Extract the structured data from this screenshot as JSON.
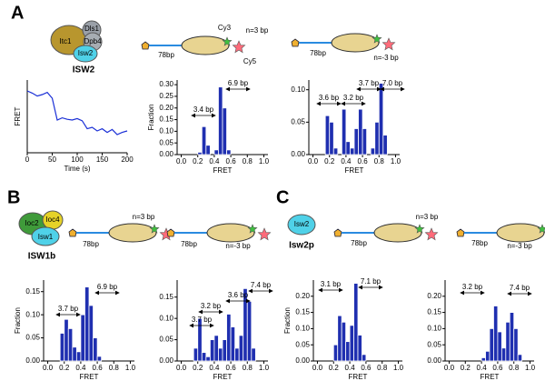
{
  "figure": {
    "panel_labels": [
      "A",
      "B",
      "C"
    ],
    "complexes": [
      {
        "name": "ISW2",
        "subunits": [
          "Itc1",
          "Dls1",
          "Dpb4",
          "Isw2"
        ]
      },
      {
        "name": "ISW1b",
        "subunits": [
          "Ioc2",
          "Ioc4",
          "Isw1"
        ]
      },
      {
        "name": "Isw2p",
        "subunits": [
          "Isw2"
        ]
      }
    ],
    "constructs": [
      {
        "linker": "78bp",
        "position": "n=3 bp",
        "donor": "Cy3",
        "acceptor": "Cy5"
      },
      {
        "linker": "78bp",
        "position": "n=-3 bp"
      },
      {
        "linker": "78bp",
        "position": "n=3 bp"
      },
      {
        "linker": "78bp",
        "position": "n=-3 bp"
      },
      {
        "linker": "78bp",
        "position": "n=3 bp"
      },
      {
        "linker": "78bp",
        "position": "n=-3 bp"
      }
    ]
  },
  "chart_data": [
    {
      "type": "line",
      "xlabel": "Time (s)",
      "ylabel": "FRET",
      "color": "#1a2fd6",
      "x": [
        0,
        10,
        20,
        30,
        40,
        50,
        60,
        70,
        80,
        90,
        100,
        110,
        120,
        130,
        140,
        150,
        160,
        170,
        180,
        190,
        200
      ],
      "values": [
        0.85,
        0.82,
        0.78,
        0.8,
        0.83,
        0.75,
        0.45,
        0.48,
        0.46,
        0.45,
        0.47,
        0.44,
        0.33,
        0.35,
        0.3,
        0.33,
        0.28,
        0.32,
        0.25,
        0.28,
        0.3
      ],
      "xlim": [
        0,
        200
      ],
      "ylim": [
        0,
        1
      ],
      "xticks": [
        0,
        50,
        100,
        150,
        200
      ]
    },
    {
      "type": "histogram",
      "xlabel": "FRET",
      "ylabel": "Fraction",
      "color": "#1f2fb0",
      "bins": [
        0,
        0.05,
        0.1,
        0.15,
        0.2,
        0.25,
        0.3,
        0.35,
        0.4,
        0.45,
        0.5,
        0.55,
        0.6,
        0.65,
        0.7,
        0.75,
        0.8,
        0.85,
        0.9,
        0.95,
        1
      ],
      "values": [
        0,
        0,
        0,
        0,
        0.01,
        0.12,
        0.04,
        0,
        0.02,
        0.29,
        0.2,
        0.02,
        0,
        0,
        0,
        0,
        0,
        0,
        0,
        0
      ],
      "annotations": [
        "3.4 bp",
        "6.9 bp"
      ],
      "xlim": [
        -0.05,
        1.05
      ],
      "ylim": [
        0,
        0.32
      ],
      "xticks": [
        {
          "value": 0,
          "label": "0.0"
        },
        {
          "value": 0.2,
          "label": "0.2"
        },
        {
          "value": 0.4,
          "label": "0.4"
        },
        {
          "value": 0.6,
          "label": "0.6"
        },
        {
          "value": 0.8,
          "label": "0.8"
        },
        {
          "value": 1,
          "label": "1.0"
        }
      ],
      "yticks": [
        {
          "value": 0,
          "label": "0.00"
        },
        {
          "value": 0.05,
          "label": "0.05"
        },
        {
          "value": 0.1,
          "label": "0.10"
        },
        {
          "value": 0.15,
          "label": "0.15"
        },
        {
          "value": 0.2,
          "label": "0.20"
        },
        {
          "value": 0.25,
          "label": "0.25"
        },
        {
          "value": 0.3,
          "label": "0.30"
        }
      ]
    },
    {
      "type": "histogram",
      "xlabel": "FRET",
      "color": "#1f2fb0",
      "bins": [
        0,
        0.05,
        0.1,
        0.15,
        0.2,
        0.25,
        0.3,
        0.35,
        0.4,
        0.45,
        0.5,
        0.55,
        0.6,
        0.65,
        0.7,
        0.75,
        0.8,
        0.85,
        0.9,
        0.95,
        1
      ],
      "values": [
        0,
        0,
        0,
        0.06,
        0.05,
        0.01,
        0,
        0.07,
        0.02,
        0.01,
        0.04,
        0.07,
        0.04,
        0,
        0.01,
        0.05,
        0.11,
        0.03,
        0,
        0
      ],
      "annotations": [
        "3.6 bp",
        "3.2 bp",
        "3.7 bp",
        "7.0 bp"
      ],
      "xlim": [
        -0.05,
        1.05
      ],
      "ylim": [
        0,
        0.115
      ],
      "xticks": [
        {
          "value": 0,
          "label": "0.0"
        },
        {
          "value": 0.2,
          "label": "0.2"
        },
        {
          "value": 0.4,
          "label": "0.4"
        },
        {
          "value": 0.6,
          "label": "0.6"
        },
        {
          "value": 0.8,
          "label": "0.8"
        },
        {
          "value": 1,
          "label": "1.0"
        }
      ],
      "yticks": [
        {
          "value": 0,
          "label": "0.00"
        },
        {
          "value": 0.05,
          "label": "0.05"
        },
        {
          "value": 0.1,
          "label": "0.10"
        }
      ]
    },
    {
      "type": "histogram",
      "xlabel": "FRET",
      "ylabel": "Fraction",
      "color": "#1f2fb0",
      "bins": [
        0,
        0.05,
        0.1,
        0.15,
        0.2,
        0.25,
        0.3,
        0.35,
        0.4,
        0.45,
        0.5,
        0.55,
        0.6,
        0.65,
        0.7,
        0.75,
        0.8,
        0.85,
        0.9,
        0.95,
        1
      ],
      "values": [
        0,
        0,
        0,
        0.06,
        0.09,
        0.07,
        0.03,
        0.02,
        0.1,
        0.16,
        0.12,
        0.05,
        0.01,
        0,
        0,
        0,
        0,
        0,
        0,
        0
      ],
      "annotations": [
        "3.7 bp",
        "6.9 bp"
      ],
      "xlim": [
        -0.05,
        1.05
      ],
      "ylim": [
        0,
        0.175
      ],
      "xticks": [
        {
          "value": 0,
          "label": "0.0"
        },
        {
          "value": 0.2,
          "label": "0.2"
        },
        {
          "value": 0.4,
          "label": "0.4"
        },
        {
          "value": 0.6,
          "label": "0.6"
        },
        {
          "value": 0.8,
          "label": "0.8"
        },
        {
          "value": 1,
          "label": "1.0"
        }
      ],
      "yticks": [
        {
          "value": 0,
          "label": "0.00"
        },
        {
          "value": 0.05,
          "label": "0.05"
        },
        {
          "value": 0.1,
          "label": "0.10"
        },
        {
          "value": 0.15,
          "label": "0.15"
        }
      ]
    },
    {
      "type": "histogram",
      "xlabel": "FRET",
      "color": "#1f2fb0",
      "bins": [
        0,
        0.05,
        0.1,
        0.15,
        0.2,
        0.25,
        0.3,
        0.35,
        0.4,
        0.45,
        0.5,
        0.55,
        0.6,
        0.65,
        0.7,
        0.75,
        0.8,
        0.85,
        0.9,
        0.95,
        1
      ],
      "values": [
        0,
        0,
        0,
        0.03,
        0.1,
        0.02,
        0.01,
        0.05,
        0.06,
        0.03,
        0.05,
        0.11,
        0.08,
        0.03,
        0.06,
        0.17,
        0.14,
        0.03,
        0,
        0
      ],
      "annotations": [
        "3.2 bp",
        "3.7 bp",
        "3.6 bp",
        "7.4 bp"
      ],
      "xlim": [
        -0.05,
        1.05
      ],
      "ylim": [
        0,
        0.19
      ],
      "xticks": [
        {
          "value": 0,
          "label": "0.0"
        },
        {
          "value": 0.2,
          "label": "0.2"
        },
        {
          "value": 0.4,
          "label": "0.4"
        },
        {
          "value": 0.6,
          "label": "0.6"
        },
        {
          "value": 0.8,
          "label": "0.8"
        },
        {
          "value": 1,
          "label": "1.0"
        }
      ],
      "yticks": [
        {
          "value": 0,
          "label": "0.00"
        },
        {
          "value": 0.05,
          "label": "0.05"
        },
        {
          "value": 0.1,
          "label": "0.10"
        },
        {
          "value": 0.15,
          "label": "0.15"
        }
      ]
    },
    {
      "type": "histogram",
      "xlabel": "FRET",
      "ylabel": "Fraction",
      "color": "#1f2fb0",
      "bins": [
        0,
        0.05,
        0.1,
        0.15,
        0.2,
        0.25,
        0.3,
        0.35,
        0.4,
        0.45,
        0.5,
        0.55,
        0.6,
        0.65,
        0.7,
        0.75,
        0.8,
        0.85,
        0.9,
        0.95,
        1
      ],
      "values": [
        0,
        0,
        0,
        0,
        0.05,
        0.14,
        0.12,
        0.06,
        0.11,
        0.24,
        0.08,
        0.02,
        0,
        0,
        0,
        0,
        0,
        0,
        0,
        0
      ],
      "annotations": [
        "3.1 bp",
        "7.1 bp"
      ],
      "xlim": [
        -0.05,
        1.05
      ],
      "ylim": [
        0,
        0.25
      ],
      "xticks": [
        {
          "value": 0,
          "label": "0.0"
        },
        {
          "value": 0.2,
          "label": "0.2"
        },
        {
          "value": 0.4,
          "label": "0.4"
        },
        {
          "value": 0.6,
          "label": "0.6"
        },
        {
          "value": 0.8,
          "label": "0.8"
        },
        {
          "value": 1,
          "label": "1.0"
        }
      ],
      "yticks": [
        {
          "value": 0,
          "label": "0.00"
        },
        {
          "value": 0.05,
          "label": "0.05"
        },
        {
          "value": 0.1,
          "label": "0.10"
        },
        {
          "value": 0.15,
          "label": "0.15"
        },
        {
          "value": 0.2,
          "label": "0.20"
        }
      ]
    },
    {
      "type": "histogram",
      "xlabel": "FRET",
      "color": "#1f2fb0",
      "bins": [
        0,
        0.05,
        0.1,
        0.15,
        0.2,
        0.25,
        0.3,
        0.35,
        0.4,
        0.45,
        0.5,
        0.55,
        0.6,
        0.65,
        0.7,
        0.75,
        0.8,
        0.85,
        0.9,
        0.95,
        1
      ],
      "values": [
        0,
        0,
        0,
        0,
        0,
        0,
        0,
        0,
        0.01,
        0.03,
        0.1,
        0.17,
        0.09,
        0.04,
        0.12,
        0.15,
        0.1,
        0.02,
        0,
        0
      ],
      "annotations": [
        "3.2 bp",
        "7.4 bp"
      ],
      "xlim": [
        -0.05,
        1.05
      ],
      "ylim": [
        0,
        0.25
      ],
      "xticks": [
        {
          "value": 0,
          "label": "0.0"
        },
        {
          "value": 0.2,
          "label": "0.2"
        },
        {
          "value": 0.4,
          "label": "0.4"
        },
        {
          "value": 0.6,
          "label": "0.6"
        },
        {
          "value": 0.8,
          "label": "0.8"
        },
        {
          "value": 1,
          "label": "1.0"
        }
      ],
      "yticks": [
        {
          "value": 0,
          "label": "0.00"
        },
        {
          "value": 0.05,
          "label": "0.05"
        },
        {
          "value": 0.1,
          "label": "0.10"
        },
        {
          "value": 0.15,
          "label": "0.15"
        },
        {
          "value": 0.2,
          "label": "0.20"
        }
      ]
    }
  ]
}
